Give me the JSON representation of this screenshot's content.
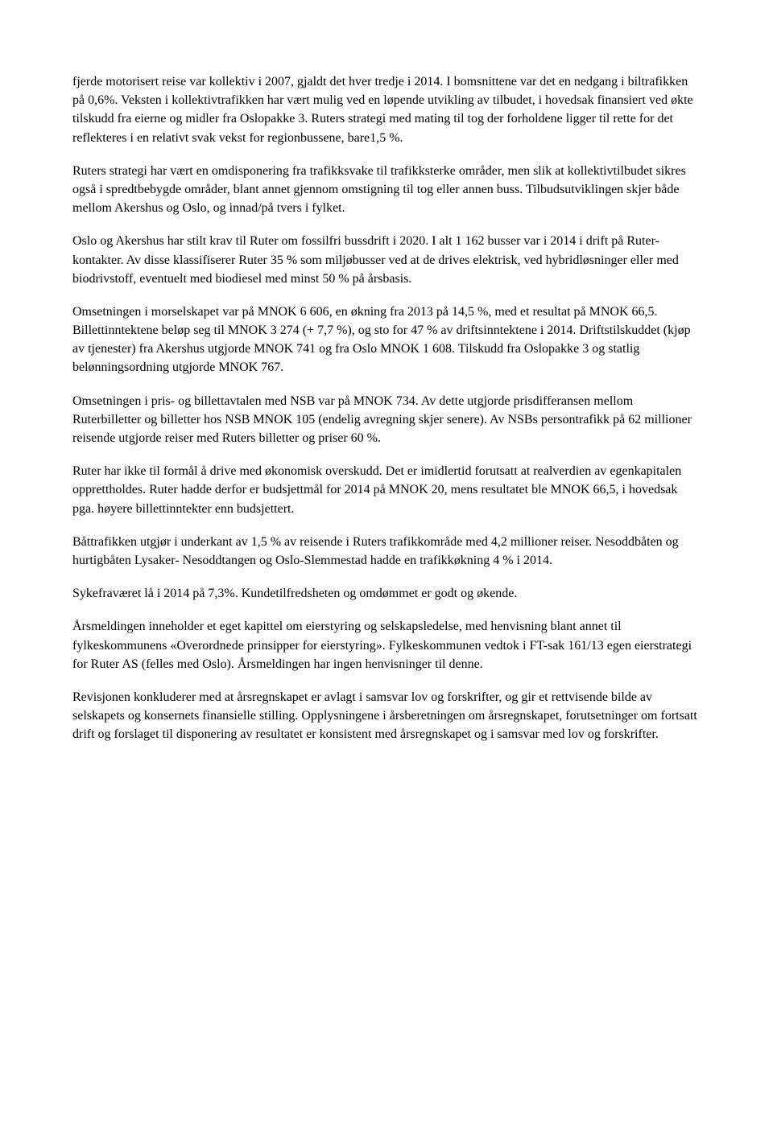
{
  "paragraphs": [
    "fjerde motorisert reise var kollektiv i 2007, gjaldt det hver tredje i 2014. I bomsnittene var det en nedgang i biltrafikken på 0,6%. Veksten i kollektivtrafikken har vært mulig ved en løpende utvikling av tilbudet, i hovedsak finansiert ved økte tilskudd fra eierne og midler fra Oslopakke 3. Ruters strategi med mating til tog der forholdene ligger til rette for det reflekteres i en relativt svak vekst for regionbussene, bare1,5 %.",
    "Ruters strategi har vært en omdisponering fra trafikksvake til trafikksterke områder, men slik at kollektivtilbudet sikres også i spredtbebygde områder, blant annet gjennom omstigning til tog eller annen buss. Tilbudsutviklingen skjer både mellom Akershus og Oslo, og innad/på tvers i fylket.",
    "Oslo og Akershus har stilt krav til Ruter om fossilfri bussdrift i 2020. I alt 1 162 busser var i 2014 i drift på Ruter-kontakter. Av disse klassifiserer Ruter 35 % som miljøbusser ved at de drives elektrisk, ved hybridløsninger eller med biodrivstoff, eventuelt med biodiesel med minst 50 % på årsbasis.",
    "Omsetningen i morselskapet var på MNOK 6 606, en økning fra 2013 på 14,5 %, med et resultat på MNOK 66,5. Billettinntektene beløp seg til MNOK 3 274 (+ 7,7 %), og sto for 47 % av driftsinntektene i 2014. Driftstilskuddet (kjøp av tjenester) fra Akershus utgjorde MNOK 741 og fra Oslo MNOK 1 608. Tilskudd fra Oslopakke 3 og statlig belønningsordning utgjorde MNOK 767.",
    "Omsetningen i pris- og billettavtalen med NSB var på MNOK 734. Av dette utgjorde prisdifferansen mellom Ruterbilletter og billetter hos NSB MNOK 105 (endelig avregning skjer senere). Av NSBs persontrafikk på 62 millioner reisende utgjorde reiser med Ruters billetter og priser 60 %.",
    "Ruter har ikke til formål å drive med økonomisk overskudd. Det er imidlertid forutsatt at realverdien av egenkapitalen opprettholdes. Ruter hadde derfor er budsjettmål for 2014 på MNOK 20, mens resultatet ble MNOK 66,5, i hovedsak pga. høyere billettinntekter enn budsjettert.",
    "Båttrafikken utgjør i underkant av 1,5 % av reisende i Ruters trafikkområde med 4,2 millioner reiser. Nesoddbåten og hurtigbåten Lysaker- Nesoddtangen og Oslo-Slemmestad hadde en trafikkøkning 4 % i 2014.",
    "Sykefraværet lå i 2014 på 7,3%. Kundetilfredsheten og omdømmet er godt og økende.",
    "Årsmeldingen inneholder et eget kapittel om eierstyring og selskapsledelse, med henvisning blant annet til fylkeskommunens «Overordnede prinsipper for eierstyring». Fylkeskommunen vedtok i FT-sak 161/13 egen eierstrategi for Ruter AS (felles med Oslo). Årsmeldingen har ingen henvisninger til denne.",
    "Revisjonen konkluderer med at årsregnskapet er avlagt i samsvar lov og forskrifter, og gir et rettvisende bilde av selskapets og konsernets finansielle stilling. Opplysningene i årsberetningen om årsregnskapet, forutsetninger om fortsatt drift og forslaget til disponering av resultatet er konsistent med årsregnskapet og i samsvar med lov og forskrifter."
  ]
}
